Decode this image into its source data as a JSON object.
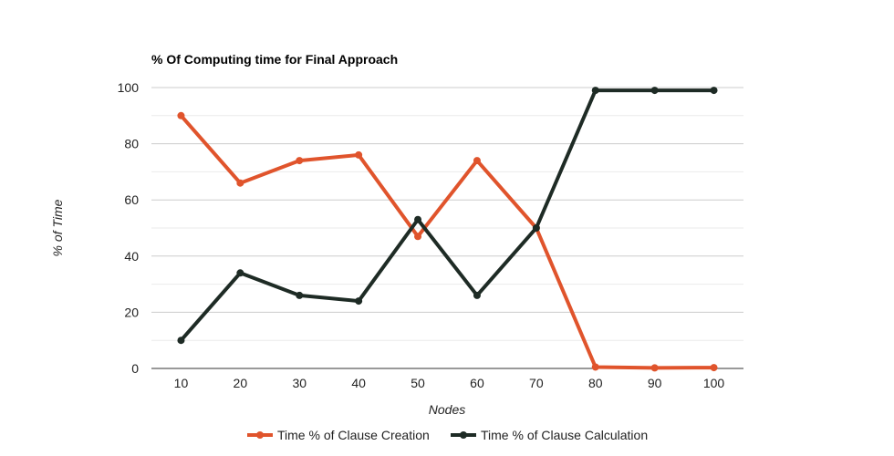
{
  "chart_data": {
    "type": "line",
    "title": "% Of Computing time for Final Approach",
    "xlabel": "Nodes",
    "ylabel": "% of Time",
    "x": [
      10,
      20,
      30,
      40,
      50,
      60,
      70,
      80,
      90,
      100
    ],
    "ylim": [
      0,
      100
    ],
    "y_ticks": [
      0,
      20,
      40,
      60,
      80,
      100
    ],
    "grid": true,
    "legend_position": "bottom",
    "series": [
      {
        "name": "Time % of Clause Creation",
        "color": "#e0542c",
        "values": [
          90,
          66,
          74,
          76,
          47,
          74,
          50,
          0.5,
          0.2,
          0.3
        ]
      },
      {
        "name": "Time % of Clause Calculation",
        "color": "#1e2b25",
        "values": [
          10,
          34,
          26,
          24,
          53,
          26,
          50,
          99,
          99,
          99
        ]
      }
    ]
  }
}
